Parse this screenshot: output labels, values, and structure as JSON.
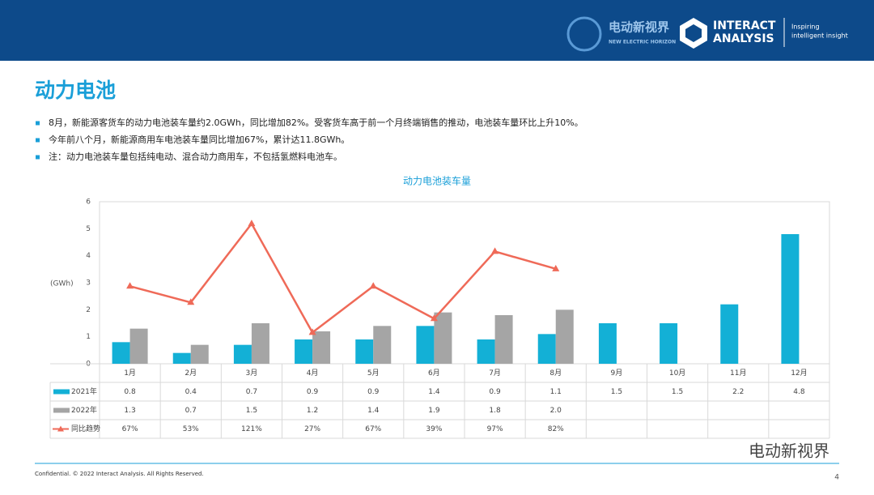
{
  "header": {
    "brand_cn": "电动新视界",
    "brand_en": "NEW ELECTRIC HORIZON",
    "company_line1": "INTERACT",
    "company_line2": "ANALYSIS",
    "tagline_line1": "Inspiring",
    "tagline_line2": "intelligent insight"
  },
  "page_title": "动力电池",
  "bullets": [
    "8月，新能源客货车的动力电池装车量约2.0GWh，同比增加82%。受客货车高于前一个月终端销售的推动，电池装车量环比上升10%。",
    "今年前八个月，新能源商用车电池装车量同比增加67%，累计达11.8GWh。",
    "注：动力电池装车量包括纯电动、混合动力商用车，不包括氢燃料电池车。"
  ],
  "chart_data": {
    "type": "bar",
    "title": "动力电池装车量",
    "ylabel": "(GWh)",
    "categories": [
      "1月",
      "2月",
      "3月",
      "4月",
      "5月",
      "6月",
      "7月",
      "8月",
      "9月",
      "10月",
      "11月",
      "12月"
    ],
    "series": [
      {
        "name": "2021年",
        "color": "#13b0d6",
        "values": [
          0.8,
          0.4,
          0.7,
          0.9,
          0.9,
          1.4,
          0.9,
          1.1,
          1.5,
          1.5,
          2.2,
          4.8
        ],
        "value_labels": [
          "0.8",
          "0.4",
          "0.7",
          "0.9",
          "0.9",
          "1.4",
          "0.9",
          "1.1",
          "1.5",
          "1.5",
          "2.2",
          "4.8"
        ]
      },
      {
        "name": "2022年",
        "color": "#a5a5a5",
        "values": [
          1.3,
          0.7,
          1.5,
          1.2,
          1.4,
          1.9,
          1.8,
          2.0,
          null,
          null,
          null,
          null
        ],
        "value_labels": [
          "1.3",
          "0.7",
          "1.5",
          "1.2",
          "1.4",
          "1.9",
          "1.8",
          "2.0",
          null,
          null,
          null,
          null
        ]
      },
      {
        "name": "同比趋势",
        "type": "line",
        "axis": "y2",
        "color": "#ef6a58",
        "values": [
          67,
          53,
          121,
          27,
          67,
          39,
          97,
          82,
          null,
          null,
          null,
          null
        ],
        "value_labels": [
          "67%",
          "53%",
          "121%",
          "27%",
          "67%",
          "39%",
          "97%",
          "82%",
          null,
          null,
          null,
          null
        ]
      }
    ],
    "ylim": [
      0,
      6
    ],
    "yticks": [
      0,
      1,
      2,
      3,
      4,
      5,
      6
    ],
    "y2lim": [
      0,
      140
    ],
    "grid": false
  },
  "watermark": "电动新视界",
  "footer": {
    "copyright": "Confidential. © 2022 Interact Analysis. All Rights Reserved.",
    "page": "4"
  }
}
